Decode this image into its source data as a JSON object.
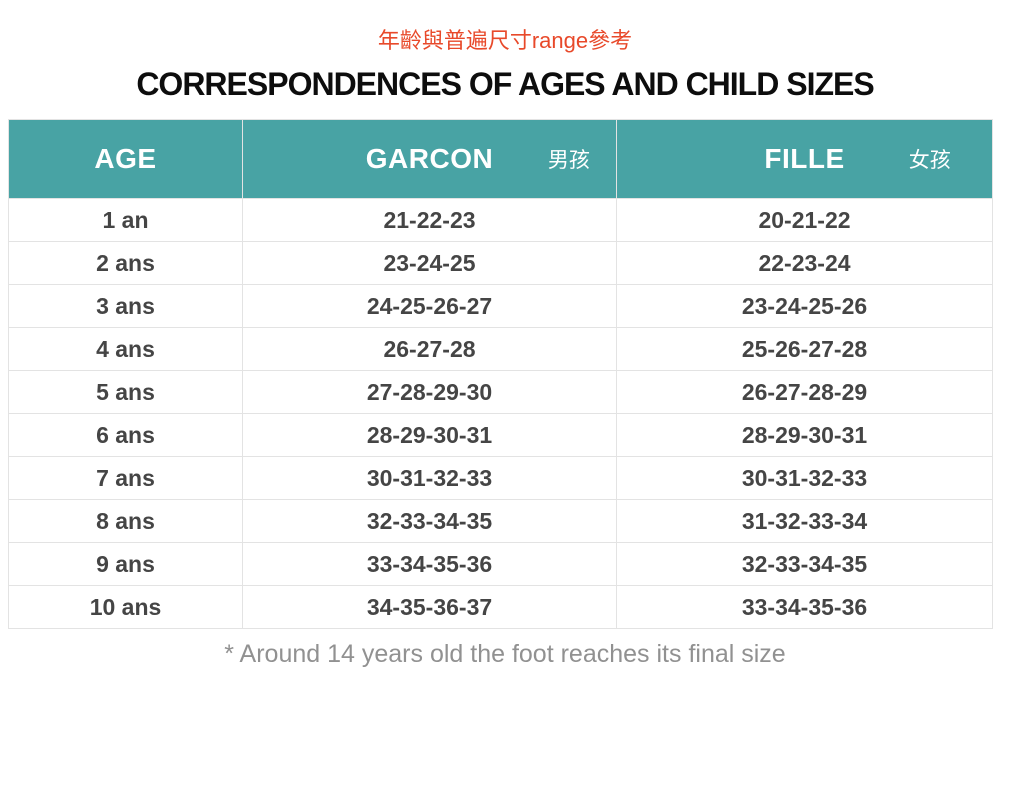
{
  "page": {
    "subtitle_zh": "年齡與普遍尺寸range參考",
    "title": "CORRESPONDENCES OF AGES AND CHILD SIZES",
    "footnote": "* Around 14 years old the foot reaches its final size"
  },
  "colors": {
    "header_teal": "#48a3a4",
    "subtitle_red": "#e8492a",
    "title_black": "#0d0d0d",
    "cell_text_gray": "#454545",
    "footnote_gray": "#919191",
    "border_gray": "#e3e3e3"
  },
  "table": {
    "columns": [
      {
        "label": "AGE",
        "label_zh": ""
      },
      {
        "label": "GARCON",
        "label_zh": "男孩"
      },
      {
        "label": "FILLE",
        "label_zh": "女孩"
      }
    ],
    "rows": [
      {
        "age": "1 an",
        "garcon": "21-22-23",
        "fille": "20-21-22"
      },
      {
        "age": "2 ans",
        "garcon": "23-24-25",
        "fille": "22-23-24"
      },
      {
        "age": "3 ans",
        "garcon": "24-25-26-27",
        "fille": "23-24-25-26"
      },
      {
        "age": "4 ans",
        "garcon": "26-27-28",
        "fille": "25-26-27-28"
      },
      {
        "age": "5 ans",
        "garcon": "27-28-29-30",
        "fille": "26-27-28-29"
      },
      {
        "age": "6 ans",
        "garcon": "28-29-30-31",
        "fille": "28-29-30-31"
      },
      {
        "age": "7 ans",
        "garcon": "30-31-32-33",
        "fille": "30-31-32-33"
      },
      {
        "age": "8 ans",
        "garcon": "32-33-34-35",
        "fille": "31-32-33-34"
      },
      {
        "age": "9 ans",
        "garcon": "33-34-35-36",
        "fille": "32-33-34-35"
      },
      {
        "age": "10 ans",
        "garcon": "34-35-36-37",
        "fille": "33-34-35-36"
      }
    ]
  },
  "chart_data": {
    "type": "table",
    "title": "CORRESPONDENCES OF AGES AND CHILD SIZES",
    "subtitle": "年齡與普遍尺寸range參考",
    "columns": [
      "AGE",
      "GARCON 男孩",
      "FILLE 女孩"
    ],
    "rows": [
      [
        "1 an",
        "21-22-23",
        "20-21-22"
      ],
      [
        "2 ans",
        "23-24-25",
        "22-23-24"
      ],
      [
        "3 ans",
        "24-25-26-27",
        "23-24-25-26"
      ],
      [
        "4 ans",
        "26-27-28",
        "25-26-27-28"
      ],
      [
        "5 ans",
        "27-28-29-30",
        "26-27-28-29"
      ],
      [
        "6 ans",
        "28-29-30-31",
        "28-29-30-31"
      ],
      [
        "7 ans",
        "30-31-32-33",
        "30-31-32-33"
      ],
      [
        "8 ans",
        "32-33-34-35",
        "31-32-33-34"
      ],
      [
        "9 ans",
        "33-34-35-36",
        "32-33-34-35"
      ],
      [
        "10 ans",
        "34-35-36-37",
        "33-34-35-36"
      ]
    ],
    "annotations": [
      "* Around 14 years old the foot reaches its final size"
    ]
  }
}
